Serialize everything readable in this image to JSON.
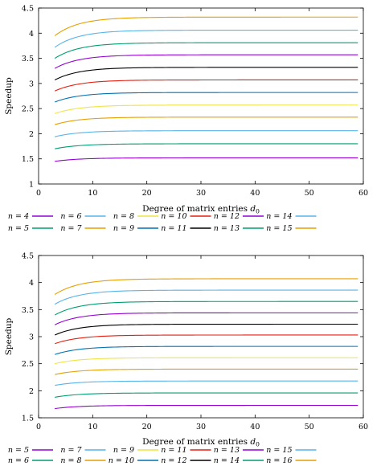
{
  "chart_data": [
    {
      "type": "line",
      "title": "",
      "xlabel": "Degree of matrix entries",
      "xlabel_sub": "0",
      "xlabel_var": "d",
      "ylabel": "Speedup",
      "xlim": [
        0,
        60
      ],
      "ylim": [
        1,
        4.5
      ],
      "x_ticks": [
        "0",
        "10",
        "20",
        "30",
        "40",
        "50",
        "60"
      ],
      "y_ticks": [
        "1",
        "1.5",
        "2",
        "2.5",
        "3",
        "3.5",
        "4",
        "4.5"
      ],
      "grid": false,
      "legend_placement": "bottom",
      "x_start": 3,
      "x_end": 59,
      "series": [
        {
          "name": "n = 4",
          "color": "#9400d3",
          "start": 1.45,
          "plateau": 1.52
        },
        {
          "name": "n = 5",
          "color": "#009e73",
          "start": 1.7,
          "plateau": 1.8
        },
        {
          "name": "n = 6",
          "color": "#56b4e9",
          "start": 1.94,
          "plateau": 2.06
        },
        {
          "name": "n = 7",
          "color": "#e69f00",
          "start": 2.18,
          "plateau": 2.33
        },
        {
          "name": "n = 8",
          "color": "#f0e442",
          "start": 2.4,
          "plateau": 2.57
        },
        {
          "name": "n = 9",
          "color": "#0072b2",
          "start": 2.63,
          "plateau": 2.82
        },
        {
          "name": "n = 10",
          "color": "#e51e10",
          "start": 2.85,
          "plateau": 3.07
        },
        {
          "name": "n = 11",
          "color": "#000000",
          "start": 3.07,
          "plateau": 3.32
        },
        {
          "name": "n = 12",
          "color": "#9400d3",
          "start": 3.3,
          "plateau": 3.57
        },
        {
          "name": "n = 13",
          "color": "#009e73",
          "start": 3.5,
          "plateau": 3.81
        },
        {
          "name": "n = 14",
          "color": "#56b4e9",
          "start": 3.72,
          "plateau": 4.06
        },
        {
          "name": "n = 15",
          "color": "#e69f00",
          "start": 3.95,
          "plateau": 4.32
        }
      ]
    },
    {
      "type": "line",
      "title": "",
      "xlabel": "Degree of matrix entries",
      "xlabel_sub": "0",
      "xlabel_var": "d",
      "ylabel": "Speedup",
      "xlim": [
        0,
        60
      ],
      "ylim": [
        1.5,
        4.5
      ],
      "x_ticks": [
        "0",
        "10",
        "20",
        "30",
        "40",
        "50",
        "60"
      ],
      "y_ticks": [
        "1.5",
        "2",
        "2.5",
        "3",
        "3.5",
        "4",
        "4.5"
      ],
      "grid": false,
      "legend_placement": "bottom",
      "x_start": 3,
      "x_end": 59,
      "series": [
        {
          "name": "n = 5",
          "color": "#9400d3",
          "start": 1.67,
          "plateau": 1.73
        },
        {
          "name": "n = 6",
          "color": "#009e73",
          "start": 1.88,
          "plateau": 1.96
        },
        {
          "name": "n = 7",
          "color": "#56b4e9",
          "start": 2.1,
          "plateau": 2.18
        },
        {
          "name": "n = 8",
          "color": "#e69f00",
          "start": 2.3,
          "plateau": 2.4
        },
        {
          "name": "n = 9",
          "color": "#f0e442",
          "start": 2.5,
          "plateau": 2.61
        },
        {
          "name": "n = 10",
          "color": "#0072b2",
          "start": 2.67,
          "plateau": 2.82
        },
        {
          "name": "n = 11",
          "color": "#e51e10",
          "start": 2.87,
          "plateau": 3.03
        },
        {
          "name": "n = 12",
          "color": "#000000",
          "start": 3.03,
          "plateau": 3.23
        },
        {
          "name": "n = 13",
          "color": "#9400d3",
          "start": 3.22,
          "plateau": 3.44
        },
        {
          "name": "n = 14",
          "color": "#009e73",
          "start": 3.4,
          "plateau": 3.65
        },
        {
          "name": "n = 15",
          "color": "#56b4e9",
          "start": 3.6,
          "plateau": 3.86
        },
        {
          "name": "n = 16",
          "color": "#e69f00",
          "start": 3.78,
          "plateau": 4.07
        }
      ]
    }
  ]
}
